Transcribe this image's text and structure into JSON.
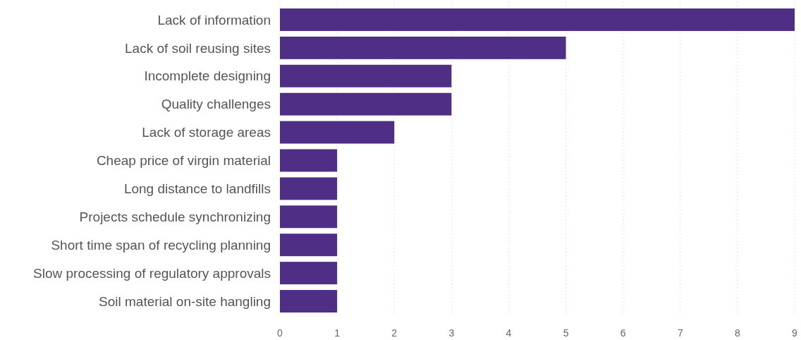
{
  "chart_data": {
    "type": "bar",
    "orientation": "horizontal",
    "categories": [
      "Lack of information",
      "Lack of soil reusing sites",
      "Incomplete designing",
      "Quality challenges",
      "Lack of storage areas",
      "Cheap price of virgin material",
      "Long distance to landfills",
      "Projects schedule synchronizing",
      "Short time span of recycling planning",
      "Slow processing of regulatory approvals",
      "Soil material on-site hangling"
    ],
    "values": [
      9,
      5,
      3,
      3,
      2,
      1,
      1,
      1,
      1,
      1,
      1
    ],
    "color": "#4f2f85",
    "xlim": [
      0,
      9
    ],
    "xticks": [
      0,
      1,
      2,
      3,
      4,
      5,
      6,
      7,
      8,
      9
    ],
    "grid": "x"
  }
}
